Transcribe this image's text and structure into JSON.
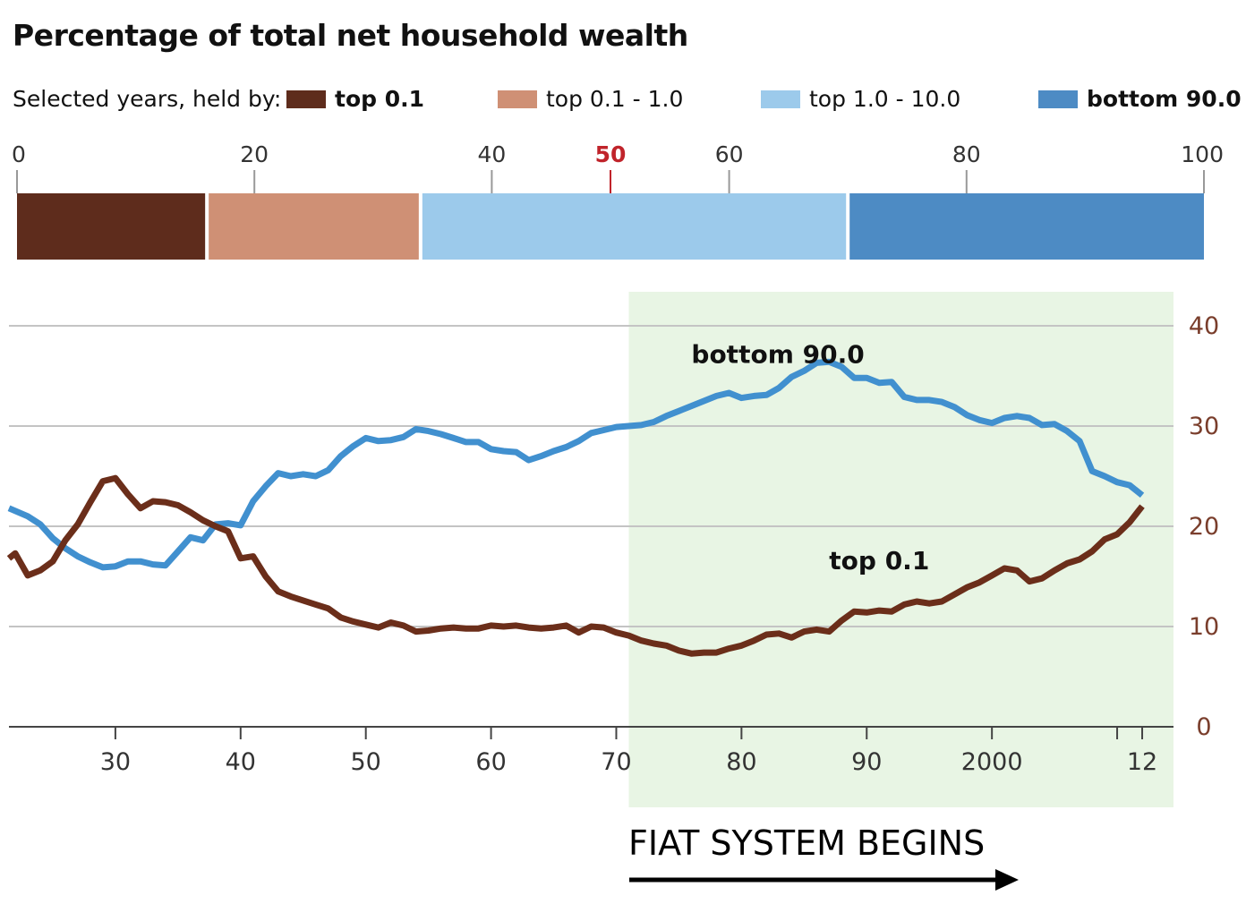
{
  "title": "Percentage of total net household wealth",
  "legend": {
    "lead": "Selected years, held by:",
    "items": [
      {
        "label": "top 0.1",
        "color": "#5e2c1c",
        "bold": true
      },
      {
        "label": "top 0.1 - 1.0",
        "color": "#cf9075",
        "bold": false
      },
      {
        "label": "top 1.0 - 10.0",
        "color": "#9ccaeb",
        "bold": false
      },
      {
        "label": "bottom 90.0",
        "color": "#4d8bc4",
        "bold": true
      }
    ]
  },
  "annotation": {
    "text": "FIAT SYSTEM BEGINS",
    "shade_from": 1971,
    "shade_color": "#e8f5e4"
  },
  "chart_data": [
    {
      "type": "bar",
      "orientation": "horizontal-stacked",
      "xlim": [
        0,
        100
      ],
      "ticks": [
        "0",
        "20",
        "40",
        "50",
        "60",
        "80",
        "100"
      ],
      "tick_values": [
        0,
        20,
        40,
        50,
        60,
        80,
        100
      ],
      "highlight_tick": "50",
      "highlight_color": "#c0242b",
      "series": [
        {
          "name": "top 0.1",
          "value": 16,
          "color": "#5e2c1c"
        },
        {
          "name": "top 0.1 - 1.0",
          "value": 18,
          "color": "#cf9075"
        },
        {
          "name": "top 1.0 - 10.0",
          "value": 36,
          "color": "#9ccaeb"
        },
        {
          "name": "bottom 90.0",
          "value": 30,
          "color": "#4d8bc4"
        }
      ]
    },
    {
      "type": "line",
      "xlim": [
        1921.5,
        2014.5
      ],
      "ylim": [
        0,
        40
      ],
      "x_ticks": [
        "30",
        "40",
        "50",
        "60",
        "70",
        "80",
        "90",
        "2000",
        "12"
      ],
      "x_tick_values": [
        1930,
        1940,
        1950,
        1960,
        1970,
        1980,
        1990,
        2000,
        2012
      ],
      "y_ticks": [
        "0",
        "10",
        "20",
        "30",
        "40"
      ],
      "y_tick_values": [
        0,
        10,
        20,
        30,
        40
      ],
      "grid": true,
      "series": [
        {
          "name": "bottom 90.0",
          "color": "#4190cf",
          "points": [
            [
              1921.5,
              21.8
            ],
            [
              1923,
              21.0
            ],
            [
              1924,
              20.2
            ],
            [
              1925,
              18.8
            ],
            [
              1926,
              17.8
            ],
            [
              1927,
              17.0
            ],
            [
              1928,
              16.4
            ],
            [
              1929,
              15.9
            ],
            [
              1930,
              16.0
            ],
            [
              1931,
              16.5
            ],
            [
              1932,
              16.5
            ],
            [
              1933,
              16.2
            ],
            [
              1934,
              16.1
            ],
            [
              1935,
              17.5
            ],
            [
              1936,
              18.9
            ],
            [
              1937,
              18.6
            ],
            [
              1938,
              20.2
            ],
            [
              1939,
              20.3
            ],
            [
              1940,
              20.1
            ],
            [
              1941,
              22.5
            ],
            [
              1942,
              24.0
            ],
            [
              1943,
              25.3
            ],
            [
              1944,
              25.0
            ],
            [
              1945,
              25.2
            ],
            [
              1946,
              25.0
            ],
            [
              1947,
              25.6
            ],
            [
              1948,
              27.0
            ],
            [
              1949,
              28.0
            ],
            [
              1950,
              28.8
            ],
            [
              1951,
              28.5
            ],
            [
              1952,
              28.6
            ],
            [
              1953,
              28.9
            ],
            [
              1954,
              29.7
            ],
            [
              1955,
              29.5
            ],
            [
              1956,
              29.2
            ],
            [
              1957,
              28.8
            ],
            [
              1958,
              28.4
            ],
            [
              1959,
              28.4
            ],
            [
              1960,
              27.7
            ],
            [
              1961,
              27.5
            ],
            [
              1962,
              27.4
            ],
            [
              1963,
              26.6
            ],
            [
              1964,
              27.0
            ],
            [
              1965,
              27.5
            ],
            [
              1966,
              27.9
            ],
            [
              1967,
              28.5
            ],
            [
              1968,
              29.3
            ],
            [
              1969,
              29.6
            ],
            [
              1970,
              29.9
            ],
            [
              1971,
              30.0
            ],
            [
              1972,
              30.1
            ],
            [
              1973,
              30.4
            ],
            [
              1974,
              31.0
            ],
            [
              1975,
              31.5
            ],
            [
              1976,
              32.0
            ],
            [
              1977,
              32.5
            ],
            [
              1978,
              33.0
            ],
            [
              1979,
              33.3
            ],
            [
              1980,
              32.8
            ],
            [
              1981,
              33.0
            ],
            [
              1982,
              33.1
            ],
            [
              1983,
              33.8
            ],
            [
              1984,
              34.9
            ],
            [
              1985,
              35.5
            ],
            [
              1986,
              36.3
            ],
            [
              1987,
              36.4
            ],
            [
              1988,
              35.9
            ],
            [
              1989,
              34.8
            ],
            [
              1990,
              34.8
            ],
            [
              1991,
              34.3
            ],
            [
              1992,
              34.4
            ],
            [
              1993,
              32.9
            ],
            [
              1994,
              32.6
            ],
            [
              1995,
              32.6
            ],
            [
              1996,
              32.4
            ],
            [
              1997,
              31.9
            ],
            [
              1998,
              31.1
            ],
            [
              1999,
              30.6
            ],
            [
              2000,
              30.3
            ],
            [
              2001,
              30.8
            ],
            [
              2002,
              31.0
            ],
            [
              2003,
              30.8
            ],
            [
              2004,
              30.1
            ],
            [
              2005,
              30.2
            ],
            [
              2006,
              29.5
            ],
            [
              2007,
              28.5
            ],
            [
              2008,
              25.5
            ],
            [
              2009,
              25.0
            ],
            [
              2010,
              24.4
            ],
            [
              2011,
              24.1
            ],
            [
              2012,
              23.1
            ]
          ]
        },
        {
          "name": "top 0.1",
          "color": "#6b2e1a",
          "points": [
            [
              1921.5,
              16.8
            ],
            [
              1922,
              17.3
            ],
            [
              1923,
              15.1
            ],
            [
              1924,
              15.6
            ],
            [
              1925,
              16.5
            ],
            [
              1926,
              18.6
            ],
            [
              1927,
              20.2
            ],
            [
              1928,
              22.4
            ],
            [
              1929,
              24.5
            ],
            [
              1930,
              24.8
            ],
            [
              1931,
              23.2
            ],
            [
              1932,
              21.8
            ],
            [
              1933,
              22.5
            ],
            [
              1934,
              22.4
            ],
            [
              1935,
              22.1
            ],
            [
              1936,
              21.4
            ],
            [
              1937,
              20.6
            ],
            [
              1938,
              20.0
            ],
            [
              1939,
              19.5
            ],
            [
              1940,
              16.8
            ],
            [
              1941,
              17.0
            ],
            [
              1942,
              15.0
            ],
            [
              1943,
              13.5
            ],
            [
              1944,
              13.0
            ],
            [
              1945,
              12.6
            ],
            [
              1946,
              12.2
            ],
            [
              1947,
              11.8
            ],
            [
              1948,
              10.9
            ],
            [
              1949,
              10.5
            ],
            [
              1950,
              10.2
            ],
            [
              1951,
              9.9
            ],
            [
              1952,
              10.4
            ],
            [
              1953,
              10.1
            ],
            [
              1954,
              9.5
            ],
            [
              1955,
              9.6
            ],
            [
              1956,
              9.8
            ],
            [
              1957,
              9.9
            ],
            [
              1958,
              9.8
            ],
            [
              1959,
              9.8
            ],
            [
              1960,
              10.1
            ],
            [
              1961,
              10.0
            ],
            [
              1962,
              10.1
            ],
            [
              1963,
              9.9
            ],
            [
              1964,
              9.8
            ],
            [
              1965,
              9.9
            ],
            [
              1966,
              10.1
            ],
            [
              1967,
              9.4
            ],
            [
              1968,
              10.0
            ],
            [
              1969,
              9.9
            ],
            [
              1970,
              9.4
            ],
            [
              1971,
              9.1
            ],
            [
              1972,
              8.6
            ],
            [
              1973,
              8.3
            ],
            [
              1974,
              8.1
            ],
            [
              1975,
              7.6
            ],
            [
              1976,
              7.3
            ],
            [
              1977,
              7.4
            ],
            [
              1978,
              7.4
            ],
            [
              1979,
              7.8
            ],
            [
              1980,
              8.1
            ],
            [
              1981,
              8.6
            ],
            [
              1982,
              9.2
            ],
            [
              1983,
              9.3
            ],
            [
              1984,
              8.9
            ],
            [
              1985,
              9.5
            ],
            [
              1986,
              9.7
            ],
            [
              1987,
              9.5
            ],
            [
              1988,
              10.6
            ],
            [
              1989,
              11.5
            ],
            [
              1990,
              11.4
            ],
            [
              1991,
              11.6
            ],
            [
              1992,
              11.5
            ],
            [
              1993,
              12.2
            ],
            [
              1994,
              12.5
            ],
            [
              1995,
              12.3
            ],
            [
              1996,
              12.5
            ],
            [
              1997,
              13.2
            ],
            [
              1998,
              13.9
            ],
            [
              1999,
              14.4
            ],
            [
              2000,
              15.1
            ],
            [
              2001,
              15.8
            ],
            [
              2002,
              15.6
            ],
            [
              2003,
              14.5
            ],
            [
              2004,
              14.8
            ],
            [
              2005,
              15.6
            ],
            [
              2006,
              16.3
            ],
            [
              2007,
              16.7
            ],
            [
              2008,
              17.5
            ],
            [
              2009,
              18.7
            ],
            [
              2010,
              19.2
            ],
            [
              2011,
              20.4
            ],
            [
              2012,
              22.0
            ]
          ]
        }
      ],
      "labels": [
        {
          "text": "bottom 90.0",
          "x": 1976,
          "y": 36.3
        },
        {
          "text": "top 0.1",
          "x": 1987,
          "y": 15.7
        }
      ]
    }
  ]
}
